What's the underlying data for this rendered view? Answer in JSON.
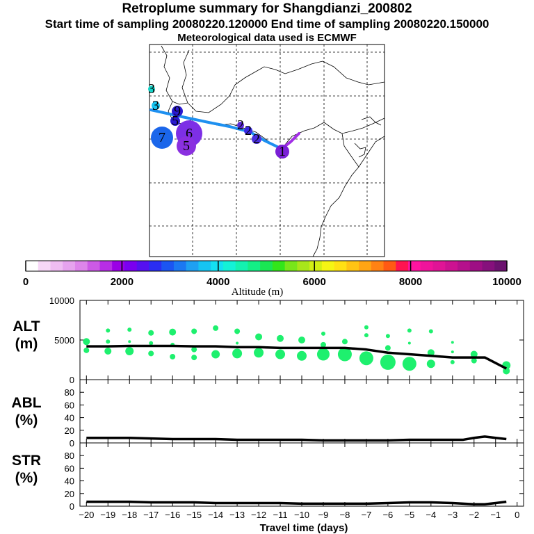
{
  "header": {
    "title": "Retroplume summary for Shangdianzi_200802",
    "subtitle": "Start time of sampling 20080220.120000     End time of sampling 20080220.150000",
    "meteo": "Meteorological data used is ECMWF"
  },
  "colorbar": {
    "label": "Altitude (m)",
    "ticks": [
      "0",
      "2000",
      "4000",
      "6000",
      "8000",
      "10000"
    ],
    "colors": [
      "#ffffff",
      "#f7d8f7",
      "#efbdf2",
      "#e6a3ee",
      "#dd85ea",
      "#cc5ae6",
      "#b82ee6",
      "#9b00e6",
      "#7a00f0",
      "#5511f0",
      "#2a2ef2",
      "#1b55f2",
      "#1b78f2",
      "#1ea0f2",
      "#16c4f2",
      "#14e0f2",
      "#14f2d7",
      "#14f2b0",
      "#14ef86",
      "#1ae653",
      "#33e61a",
      "#78e61a",
      "#a8e61a",
      "#d2ef14",
      "#f5f514",
      "#ffe114",
      "#ffc414",
      "#ffa514",
      "#ff8214",
      "#ff5a14",
      "#ff1450",
      "#ff14a0",
      "#f0149b",
      "#e01496",
      "#cc1291",
      "#b5108c",
      "#9e0e84",
      "#86107c",
      "#6c126f"
    ]
  },
  "map": {
    "markers": [
      {
        "label": "1",
        "color": "#7a1fd6",
        "size": 10
      },
      {
        "label": "2",
        "color": "#4a2fe0",
        "size": 7
      },
      {
        "label": "2",
        "color": "#3a2ae6",
        "size": 6
      },
      {
        "label": "2",
        "color": "#5b2ad8",
        "size": 5
      },
      {
        "label": "3",
        "color": "#13d4c8",
        "size": 5
      },
      {
        "label": "3",
        "color": "#16c4f2",
        "size": 6
      },
      {
        "label": "9",
        "color": "#2a1ad0",
        "size": 8
      },
      {
        "label": "5",
        "color": "#2a1ad0",
        "size": 7
      },
      {
        "label": "6",
        "color": "#7d2fe6",
        "size": 19
      },
      {
        "label": "5",
        "color": "#8a30e0",
        "size": 14
      },
      {
        "label": "7",
        "color": "#1b66ea",
        "size": 16
      }
    ],
    "icons": {
      "marker": "altitude-circle-marker",
      "track": "trajectory-line-icon"
    }
  },
  "chart_data": [
    {
      "type": "scatter",
      "panel": "ALT",
      "ylabel": "ALT\n(m)",
      "ylabel_line1": "ALT",
      "ylabel_line2": "(m)",
      "xlim": [
        -20.3,
        0.3
      ],
      "ylim": [
        0,
        10000
      ],
      "yticks": [
        "10000",
        "5000",
        "0"
      ],
      "ytick_values": [
        10000,
        5000,
        0
      ],
      "line_color": "#000000",
      "cluster_color": "#1ef06e",
      "line": {
        "x": [
          -20,
          -19,
          -18,
          -17,
          -16,
          -15,
          -14,
          -13,
          -12,
          -11,
          -10,
          -9,
          -8,
          -7,
          -6,
          -5,
          -4,
          -3,
          -2,
          -1.5,
          -0.5
        ],
        "y": [
          4200,
          4200,
          4250,
          4250,
          4250,
          4200,
          4200,
          4100,
          4100,
          4000,
          4000,
          4000,
          4000,
          3800,
          3400,
          3200,
          3000,
          2800,
          2800,
          2800,
          1400
        ]
      },
      "clusters": [
        {
          "x": -20,
          "y": 4800,
          "size": 5
        },
        {
          "x": -20,
          "y": 3700,
          "size": 4
        },
        {
          "x": -19,
          "y": 6200,
          "size": 3
        },
        {
          "x": -19,
          "y": 4800,
          "size": 3
        },
        {
          "x": -19,
          "y": 3600,
          "size": 5
        },
        {
          "x": -18,
          "y": 6300,
          "size": 3
        },
        {
          "x": -18,
          "y": 4800,
          "size": 2
        },
        {
          "x": -18,
          "y": 3600,
          "size": 6
        },
        {
          "x": -17,
          "y": 5900,
          "size": 4
        },
        {
          "x": -17,
          "y": 4600,
          "size": 3
        },
        {
          "x": -17,
          "y": 3300,
          "size": 4
        },
        {
          "x": -16,
          "y": 6000,
          "size": 5
        },
        {
          "x": -16,
          "y": 4400,
          "size": 3
        },
        {
          "x": -16,
          "y": 2900,
          "size": 4
        },
        {
          "x": -15,
          "y": 6100,
          "size": 4
        },
        {
          "x": -15,
          "y": 3800,
          "size": 4
        },
        {
          "x": -15,
          "y": 2800,
          "size": 4
        },
        {
          "x": -14,
          "y": 6500,
          "size": 4
        },
        {
          "x": -14,
          "y": 3200,
          "size": 6
        },
        {
          "x": -13,
          "y": 6100,
          "size": 4
        },
        {
          "x": -13,
          "y": 4600,
          "size": 2
        },
        {
          "x": -13,
          "y": 3300,
          "size": 7
        },
        {
          "x": -12,
          "y": 5400,
          "size": 5
        },
        {
          "x": -12,
          "y": 3400,
          "size": 7
        },
        {
          "x": -11,
          "y": 5200,
          "size": 5
        },
        {
          "x": -11,
          "y": 3200,
          "size": 7
        },
        {
          "x": -10,
          "y": 5000,
          "size": 5
        },
        {
          "x": -10,
          "y": 3000,
          "size": 7
        },
        {
          "x": -9,
          "y": 5800,
          "size": 3
        },
        {
          "x": -9,
          "y": 4400,
          "size": 4
        },
        {
          "x": -9,
          "y": 3200,
          "size": 9
        },
        {
          "x": -8,
          "y": 4800,
          "size": 4
        },
        {
          "x": -8,
          "y": 3200,
          "size": 10
        },
        {
          "x": -7,
          "y": 6600,
          "size": 3
        },
        {
          "x": -7,
          "y": 5600,
          "size": 3
        },
        {
          "x": -7,
          "y": 2700,
          "size": 10
        },
        {
          "x": -6,
          "y": 5500,
          "size": 3
        },
        {
          "x": -6,
          "y": 4000,
          "size": 4
        },
        {
          "x": -6,
          "y": 2200,
          "size": 11
        },
        {
          "x": -5,
          "y": 6200,
          "size": 3
        },
        {
          "x": -5,
          "y": 4600,
          "size": 2
        },
        {
          "x": -5,
          "y": 2000,
          "size": 10
        },
        {
          "x": -4,
          "y": 6100,
          "size": 3
        },
        {
          "x": -4,
          "y": 3400,
          "size": 5
        },
        {
          "x": -4,
          "y": 2000,
          "size": 6
        },
        {
          "x": -3,
          "y": 4700,
          "size": 2
        },
        {
          "x": -3,
          "y": 3500,
          "size": 2
        },
        {
          "x": -3,
          "y": 2200,
          "size": 3
        },
        {
          "x": -2,
          "y": 3200,
          "size": 5
        },
        {
          "x": -2,
          "y": 2400,
          "size": 4
        },
        {
          "x": -0.5,
          "y": 1800,
          "size": 6
        },
        {
          "x": -0.5,
          "y": 1100,
          "size": 5
        }
      ]
    },
    {
      "type": "line",
      "panel": "ABL",
      "ylabel_line1": "ABL",
      "ylabel_line2": "(%)",
      "xlim": [
        -20.3,
        0.3
      ],
      "ylim": [
        0,
        100
      ],
      "yticks": [
        "80",
        "60",
        "40",
        "20",
        "0"
      ],
      "ytick_values": [
        80,
        60,
        40,
        20,
        0
      ],
      "line": {
        "x": [
          -20,
          -19,
          -18,
          -17,
          -16,
          -15,
          -14,
          -13,
          -12,
          -11,
          -10,
          -9,
          -8,
          -7,
          -6,
          -5,
          -4,
          -3,
          -2.5,
          -2,
          -1.5,
          -1,
          -0.5
        ],
        "y": [
          8,
          8,
          8,
          7,
          6,
          6,
          6,
          5,
          5,
          5,
          5,
          4,
          4,
          4,
          4,
          5,
          5,
          5,
          5,
          8,
          10,
          8,
          6
        ]
      }
    },
    {
      "type": "line",
      "panel": "STR",
      "ylabel_line1": "STR",
      "ylabel_line2": "(%)",
      "xlim": [
        -20.3,
        0.3
      ],
      "ylim": [
        0,
        100
      ],
      "yticks": [
        "80",
        "60",
        "40",
        "20",
        "0"
      ],
      "ytick_values": [
        80,
        60,
        40,
        20,
        0
      ],
      "xlabel": "Travel time (days)",
      "xticks": [
        "−20",
        "−19",
        "−18",
        "−17",
        "−16",
        "−15",
        "−14",
        "−13",
        "−12",
        "−11",
        "−10",
        "−9",
        "−8",
        "−7",
        "−6",
        "−5",
        "−4",
        "−3",
        "−2",
        "−1",
        "0"
      ],
      "xtick_values": [
        -20,
        -19,
        -18,
        -17,
        -16,
        -15,
        -14,
        -13,
        -12,
        -11,
        -10,
        -9,
        -8,
        -7,
        -6,
        -5,
        -4,
        -3,
        -2,
        -1,
        0
      ],
      "line": {
        "x": [
          -20,
          -19,
          -18,
          -17,
          -16,
          -15,
          -14,
          -13,
          -12,
          -11,
          -10,
          -9,
          -8,
          -7,
          -6,
          -5,
          -4,
          -3,
          -2.5,
          -2,
          -1.5,
          -1,
          -0.5
        ],
        "y": [
          7,
          7,
          7,
          6,
          6,
          6,
          5,
          5,
          5,
          5,
          4,
          4,
          4,
          4,
          5,
          6,
          6,
          5,
          4,
          3,
          3,
          5,
          7
        ]
      }
    }
  ]
}
